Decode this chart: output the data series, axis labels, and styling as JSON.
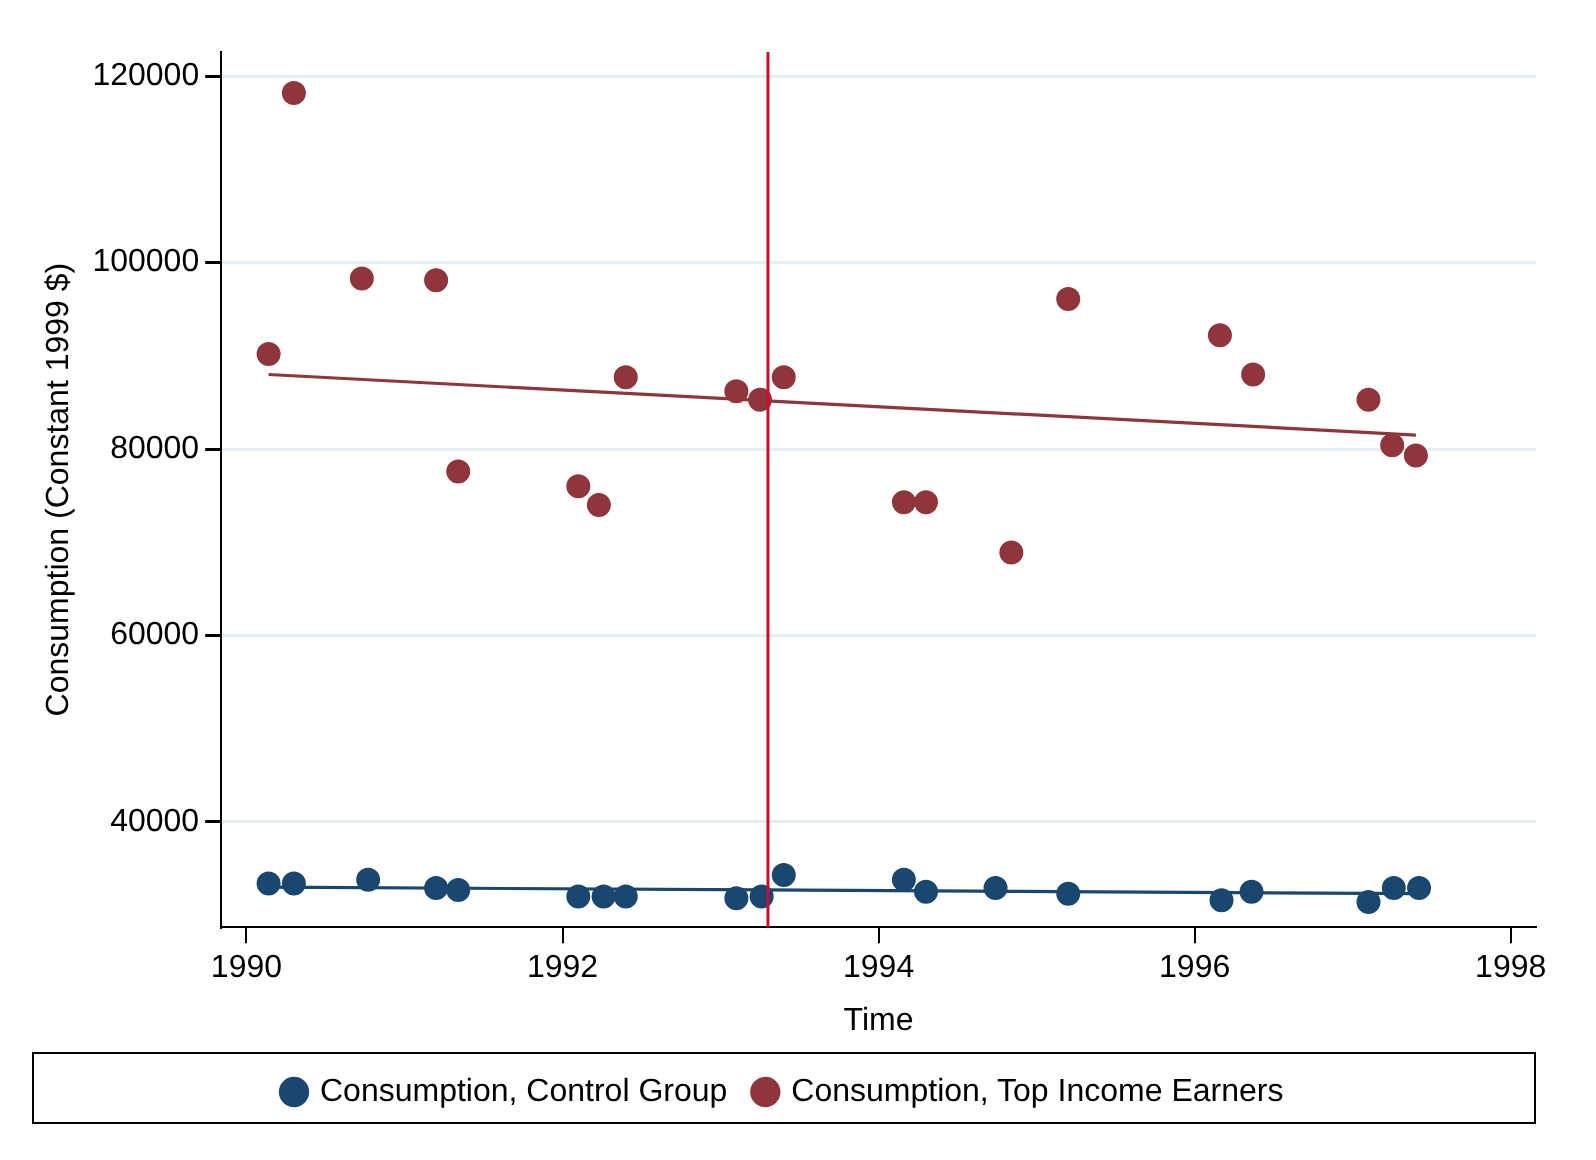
{
  "chart_data": {
    "type": "scatter",
    "xlabel": "Time",
    "ylabel": "Consumption (Constant 1999 $)",
    "xlim": [
      1989.84,
      1998.16
    ],
    "xticks": [
      1990,
      1992,
      1994,
      1996,
      1998
    ],
    "ylim": [
      28700,
      122600
    ],
    "yticks": [
      40000,
      60000,
      80000,
      100000,
      120000
    ],
    "grid": "y",
    "legend": "bottom",
    "marker": "circle",
    "series": [
      {
        "name": "Consumption, Control Group",
        "color": "#1a476f",
        "x": [
          1990.14,
          1990.3,
          1990.77,
          1991.2,
          1991.34,
          1992.1,
          1992.26,
          1992.4,
          1993.1,
          1993.26,
          1993.4,
          1994.16,
          1994.3,
          1994.74,
          1995.2,
          1996.17,
          1996.36,
          1997.1,
          1997.26,
          1997.42
        ],
        "values": [
          33400,
          33400,
          33800,
          32900,
          32700,
          32000,
          32000,
          32000,
          31800,
          32000,
          34300,
          33800,
          32500,
          32900,
          32300,
          31600,
          32500,
          31400,
          32900,
          32900
        ]
      },
      {
        "name": "Consumption, Top Income Earners",
        "color": "#90353b",
        "x": [
          1990.14,
          1990.3,
          1990.73,
          1991.2,
          1991.34,
          1992.1,
          1992.23,
          1992.4,
          1993.1,
          1993.25,
          1993.4,
          1994.16,
          1994.3,
          1994.84,
          1995.2,
          1996.16,
          1996.37,
          1997.1,
          1997.25,
          1997.4
        ],
        "values": [
          90200,
          118200,
          98300,
          98100,
          77600,
          76000,
          74000,
          87700,
          86200,
          85300,
          87700,
          74300,
          74300,
          68900,
          96100,
          92200,
          88000,
          85300,
          80400,
          79300
        ]
      },
      {
        "type": "line",
        "marker": "none",
        "color": "#1a476f",
        "x": [
          1990.14,
          1997.42
        ],
        "values": [
          33000,
          32300
        ]
      },
      {
        "type": "line",
        "marker": "none",
        "color": "#90353b",
        "x": [
          1990.14,
          1997.4
        ],
        "values": [
          88000,
          81500
        ]
      }
    ],
    "ref_lines": [
      {
        "axis": "x",
        "value": 1993.3,
        "color": "#c8102e"
      }
    ]
  }
}
